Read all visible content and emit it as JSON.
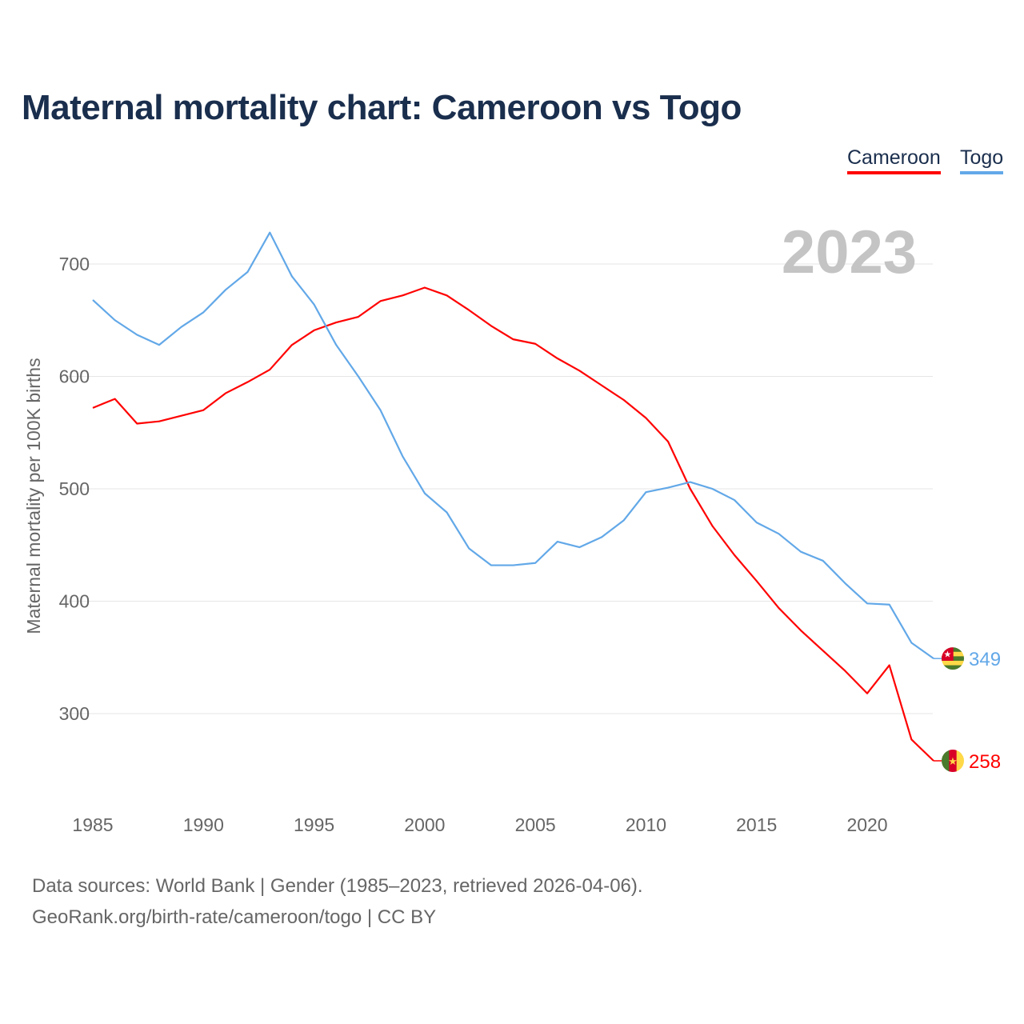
{
  "chart_data": {
    "type": "line",
    "title": "Maternal mortality chart: Cameroon vs Togo",
    "ylabel": "Maternal mortality per 100K births",
    "xlabel": "",
    "year_label": "2023",
    "xlim": [
      1985,
      2023
    ],
    "ylim": [
      225,
      745
    ],
    "xticks": [
      1985,
      1990,
      1995,
      2000,
      2005,
      2010,
      2015,
      2020
    ],
    "yticks": [
      300,
      400,
      500,
      600,
      700
    ],
    "grid": true,
    "legend_position": "top-right",
    "x": [
      1985,
      1986,
      1987,
      1988,
      1989,
      1990,
      1991,
      1992,
      1993,
      1994,
      1995,
      1996,
      1997,
      1998,
      1999,
      2000,
      2001,
      2002,
      2003,
      2004,
      2005,
      2006,
      2007,
      2008,
      2009,
      2010,
      2011,
      2012,
      2013,
      2014,
      2015,
      2016,
      2017,
      2018,
      2019,
      2020,
      2021,
      2022,
      2023
    ],
    "series": [
      {
        "name": "Cameroon",
        "color": "#ff0000",
        "end_label": "258",
        "flag": "cameroon-flag",
        "values": [
          572,
          580,
          558,
          560,
          565,
          570,
          585,
          595,
          606,
          628,
          641,
          648,
          653,
          667,
          672,
          679,
          672,
          659,
          645,
          633,
          629,
          616,
          605,
          592,
          579,
          563,
          542,
          500,
          467,
          441,
          418,
          394,
          374,
          356,
          338,
          318,
          343,
          277,
          258
        ]
      },
      {
        "name": "Togo",
        "color": "#62a8e8",
        "end_label": "349",
        "flag": "togo-flag",
        "values": [
          668,
          650,
          637,
          628,
          644,
          657,
          677,
          693,
          728,
          689,
          664,
          628,
          600,
          570,
          529,
          496,
          479,
          447,
          432,
          432,
          434,
          453,
          448,
          457,
          472,
          497,
          501,
          506,
          500,
          490,
          470,
          460,
          444,
          436,
          416,
          398,
          397,
          363,
          349
        ]
      }
    ]
  },
  "source": {
    "line1": "Data sources: World Bank | Gender (1985–2023, retrieved 2026-04-06).",
    "line2": "GeoRank.org/birth-rate/cameroon/togo | CC BY"
  }
}
